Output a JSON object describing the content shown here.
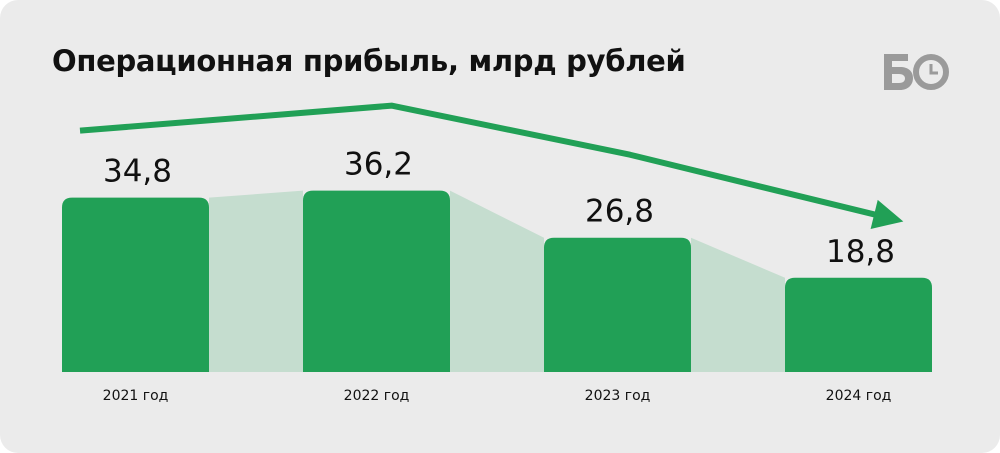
{
  "title": "Операционная прибыль, млрд рублей",
  "logo_text": "БО",
  "colors": {
    "bar": "#21a056",
    "shade": "#c5ddcf",
    "trend": "#21a056",
    "background": "#ebebeb",
    "logo": "#9a9a9a"
  },
  "chart_data": {
    "type": "bar",
    "title": "Операционная прибыль, млрд рублей",
    "categories": [
      "2021 год",
      "2022 год",
      "2023 год",
      "2024 год"
    ],
    "values": [
      34.8,
      36.2,
      26.8,
      18.8
    ],
    "value_labels": [
      "34,8",
      "36,2",
      "26,8",
      "18,8"
    ],
    "xlabel": "",
    "ylabel": "",
    "grid": false,
    "trend_arrow": true
  }
}
